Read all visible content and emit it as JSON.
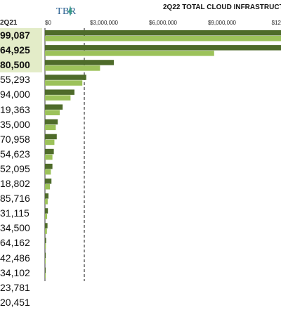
{
  "header": {
    "logo_text": "TBR",
    "title": "2Q22 TOTAL CLOUD INFRASTRUCTUR",
    "left_column_label": "2Q21"
  },
  "left_values": [
    {
      "text": "99,087",
      "highlight": true
    },
    {
      "text": "64,925",
      "highlight": true
    },
    {
      "text": "80,500",
      "highlight": true
    },
    {
      "text": "55,293",
      "highlight": false
    },
    {
      "text": "94,000",
      "highlight": false
    },
    {
      "text": "19,363",
      "highlight": false
    },
    {
      "text": "35,000",
      "highlight": false
    },
    {
      "text": "70,958",
      "highlight": false
    },
    {
      "text": "54,623",
      "highlight": false
    },
    {
      "text": "52,095",
      "highlight": false
    },
    {
      "text": "18,802",
      "highlight": false
    },
    {
      "text": "85,716",
      "highlight": false
    },
    {
      "text": "31,115",
      "highlight": false
    },
    {
      "text": "34,500",
      "highlight": false
    },
    {
      "text": "64,162",
      "highlight": false
    },
    {
      "text": "42,486",
      "highlight": false
    },
    {
      "text": "34,102",
      "highlight": false
    },
    {
      "text": "23,781",
      "highlight": false
    },
    {
      "text": "20,451",
      "highlight": false
    }
  ],
  "chart_data": {
    "type": "bar",
    "orientation": "horizontal",
    "title": "2Q22 TOTAL CLOUD INFRASTRUCTUR",
    "x_ticks": [
      "$0",
      "$3,000,000",
      "$6,000,000",
      "$9,000,000",
      "$12"
    ],
    "xlim": [
      0,
      12000000
    ],
    "reference_line": 2000000,
    "series": [
      {
        "color": "#4e6b2a",
        "values": [
          12000000,
          12000000,
          3500000,
          2100000,
          1500000,
          900000,
          650000,
          600000,
          450000,
          380000,
          330000,
          180000,
          150000,
          130000,
          60000,
          40000,
          20000,
          15000,
          10000
        ]
      },
      {
        "color": "#9cc25a",
        "values": [
          12000000,
          8600000,
          2800000,
          1900000,
          1300000,
          750000,
          550000,
          480000,
          380000,
          300000,
          250000,
          140000,
          110000,
          100000,
          45000,
          30000,
          15000,
          10000,
          8000
        ]
      }
    ]
  }
}
